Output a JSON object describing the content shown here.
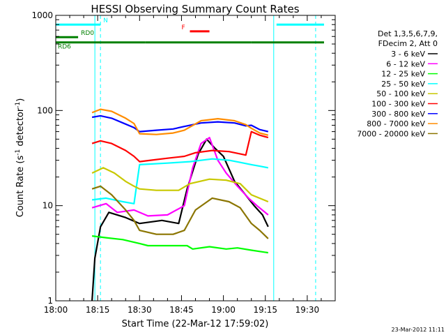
{
  "chart_data": {
    "type": "line",
    "title": "HESSI Observing Summary Count Rates",
    "xlabel": "Start Time (22-Mar-12 17:59:02)",
    "ylabel": "Count Rate (s",
    "ylabel_sup1": "-1",
    "ylabel_mid": " detector",
    "ylabel_sup2": "-1",
    "ylabel_end": ")",
    "y_scale": "log",
    "xlim": [
      0,
      100
    ],
    "ylim": [
      1,
      1000
    ],
    "x_ticks": [
      {
        "value": 0,
        "label": "18:00"
      },
      {
        "value": 15,
        "label": "18:15"
      },
      {
        "value": 30,
        "label": "18:30"
      },
      {
        "value": 45,
        "label": "18:45"
      },
      {
        "value": 60,
        "label": "19:00"
      },
      {
        "value": 75,
        "label": "19:15"
      },
      {
        "value": 90,
        "label": "19:30"
      }
    ],
    "y_ticks": [
      {
        "value": 1,
        "label": "1"
      },
      {
        "value": 10,
        "label": "10"
      },
      {
        "value": 100,
        "label": "100"
      },
      {
        "value": 1000,
        "label": "1000"
      }
    ],
    "legend_position": "right",
    "legend_header": [
      "Det 1,3,5,6,7,9,",
      "FDecim 2, Att 0"
    ],
    "series": [
      {
        "name": "3 - 6 keV",
        "color": "#000000",
        "points": [
          [
            13,
            1
          ],
          [
            14,
            2.8
          ],
          [
            16,
            6
          ],
          [
            19,
            8.5
          ],
          [
            25,
            7.5
          ],
          [
            30,
            6.5
          ],
          [
            38,
            7
          ],
          [
            44,
            6.5
          ],
          [
            47,
            15
          ],
          [
            51,
            35
          ],
          [
            54,
            50
          ],
          [
            57,
            40
          ],
          [
            60,
            33
          ],
          [
            64,
            18
          ],
          [
            67,
            14
          ],
          [
            71,
            10
          ],
          [
            74,
            8
          ],
          [
            76,
            6
          ]
        ]
      },
      {
        "name": "6 - 12 keV",
        "color": "#ff00ff",
        "points": [
          [
            13,
            9.5
          ],
          [
            18,
            10.5
          ],
          [
            22,
            8.5
          ],
          [
            28,
            9
          ],
          [
            33,
            7.8
          ],
          [
            40,
            8
          ],
          [
            46,
            10
          ],
          [
            49,
            25
          ],
          [
            52,
            45
          ],
          [
            55,
            52
          ],
          [
            58,
            30
          ],
          [
            61,
            22
          ],
          [
            65,
            16
          ],
          [
            69,
            12
          ],
          [
            72,
            10
          ],
          [
            76,
            8
          ]
        ]
      },
      {
        "name": "12 - 25 keV",
        "color": "#00ff00",
        "points": [
          [
            13,
            4.8
          ],
          [
            18,
            4.6
          ],
          [
            24,
            4.4
          ],
          [
            30,
            4
          ],
          [
            33,
            3.8
          ],
          [
            40,
            3.8
          ],
          [
            47,
            3.8
          ],
          [
            49,
            3.5
          ],
          [
            55,
            3.7
          ],
          [
            61,
            3.5
          ],
          [
            65,
            3.6
          ],
          [
            70,
            3.4
          ],
          [
            76,
            3.2
          ]
        ]
      },
      {
        "name": "25 - 50 keV",
        "color": "#00ffff",
        "points": [
          [
            13,
            11.5
          ],
          [
            18,
            12
          ],
          [
            24,
            11
          ],
          [
            28,
            10.5
          ],
          [
            30,
            27
          ],
          [
            40,
            28
          ],
          [
            48,
            29
          ],
          [
            56,
            31
          ],
          [
            62,
            30
          ],
          [
            66,
            28.5
          ],
          [
            70,
            27
          ],
          [
            73,
            26
          ],
          [
            76,
            25
          ]
        ]
      },
      {
        "name": "50 - 100 keV",
        "color": "#c8c800",
        "points": [
          [
            13,
            22
          ],
          [
            17,
            25
          ],
          [
            21,
            22
          ],
          [
            25,
            18
          ],
          [
            28,
            16
          ],
          [
            30,
            15
          ],
          [
            36,
            14.5
          ],
          [
            44,
            14.5
          ],
          [
            48,
            17
          ],
          [
            55,
            19
          ],
          [
            61,
            18.5
          ],
          [
            66,
            17
          ],
          [
            70,
            13
          ],
          [
            76,
            11
          ]
        ]
      },
      {
        "name": "100 - 300 keV",
        "color": "#ff0000",
        "points": [
          [
            13,
            45
          ],
          [
            16,
            48
          ],
          [
            20,
            45
          ],
          [
            25,
            38
          ],
          [
            28,
            33
          ],
          [
            30,
            29
          ],
          [
            34,
            30
          ],
          [
            40,
            31.5
          ],
          [
            46,
            33
          ],
          [
            50,
            36
          ],
          [
            56,
            38
          ],
          [
            62,
            37
          ],
          [
            68,
            34
          ],
          [
            70,
            60
          ],
          [
            73,
            55
          ],
          [
            76,
            52
          ]
        ]
      },
      {
        "name": "300 - 800 keV",
        "color": "#0000ff",
        "points": [
          [
            13,
            85
          ],
          [
            16,
            88
          ],
          [
            20,
            83
          ],
          [
            25,
            72
          ],
          [
            28,
            66
          ],
          [
            30,
            60
          ],
          [
            36,
            62
          ],
          [
            42,
            64
          ],
          [
            46,
            68
          ],
          [
            52,
            74
          ],
          [
            58,
            76
          ],
          [
            64,
            74
          ],
          [
            68,
            69
          ],
          [
            70,
            70
          ],
          [
            73,
            63
          ],
          [
            76,
            60
          ]
        ]
      },
      {
        "name": "800 - 7000 keV",
        "color": "#ff8c00",
        "points": [
          [
            13,
            95
          ],
          [
            16,
            103
          ],
          [
            20,
            98
          ],
          [
            25,
            83
          ],
          [
            28,
            73
          ],
          [
            30,
            57
          ],
          [
            36,
            56
          ],
          [
            42,
            58
          ],
          [
            46,
            62
          ],
          [
            52,
            78
          ],
          [
            58,
            82
          ],
          [
            64,
            78
          ],
          [
            68,
            71
          ],
          [
            70,
            65
          ],
          [
            73,
            58
          ],
          [
            76,
            55
          ]
        ]
      },
      {
        "name": "7000 - 20000 keV",
        "color": "#8b7500",
        "points": [
          [
            13,
            15
          ],
          [
            16,
            16
          ],
          [
            20,
            13
          ],
          [
            25,
            9
          ],
          [
            28,
            7
          ],
          [
            30,
            5.5
          ],
          [
            36,
            5
          ],
          [
            42,
            5
          ],
          [
            46,
            5.5
          ],
          [
            50,
            9
          ],
          [
            56,
            12
          ],
          [
            62,
            11
          ],
          [
            66,
            9.5
          ],
          [
            70,
            6.5
          ],
          [
            73,
            5.5
          ],
          [
            76,
            4.5
          ]
        ]
      }
    ],
    "flag_bars": [
      {
        "label": "N",
        "color": "#00ffff",
        "y": 800,
        "segments": [
          [
            0,
            16
          ],
          [
            79,
            96
          ]
        ]
      },
      {
        "label": "RD0",
        "color": "#008000",
        "y": 590,
        "segments": [
          [
            0,
            8
          ]
        ]
      },
      {
        "label": "RD6",
        "color": "#008000",
        "y": 520,
        "segments": [
          [
            0,
            32
          ],
          [
            32,
            52
          ],
          [
            52,
            70
          ],
          [
            70,
            96
          ]
        ]
      },
      {
        "label": "F",
        "color": "#ff0000",
        "y": 680,
        "segments": [
          [
            48,
            55
          ]
        ]
      }
    ],
    "vertical_lines": [
      {
        "x": 14,
        "color": "#00ffff",
        "style": "solid"
      },
      {
        "x": 16,
        "color": "#00ffff",
        "style": "dashed"
      },
      {
        "x": 78,
        "color": "#00ffff",
        "style": "solid"
      },
      {
        "x": 93,
        "color": "#00ffff",
        "style": "dashed"
      }
    ],
    "footer_timestamp": "23-Mar-2012 11:11"
  }
}
